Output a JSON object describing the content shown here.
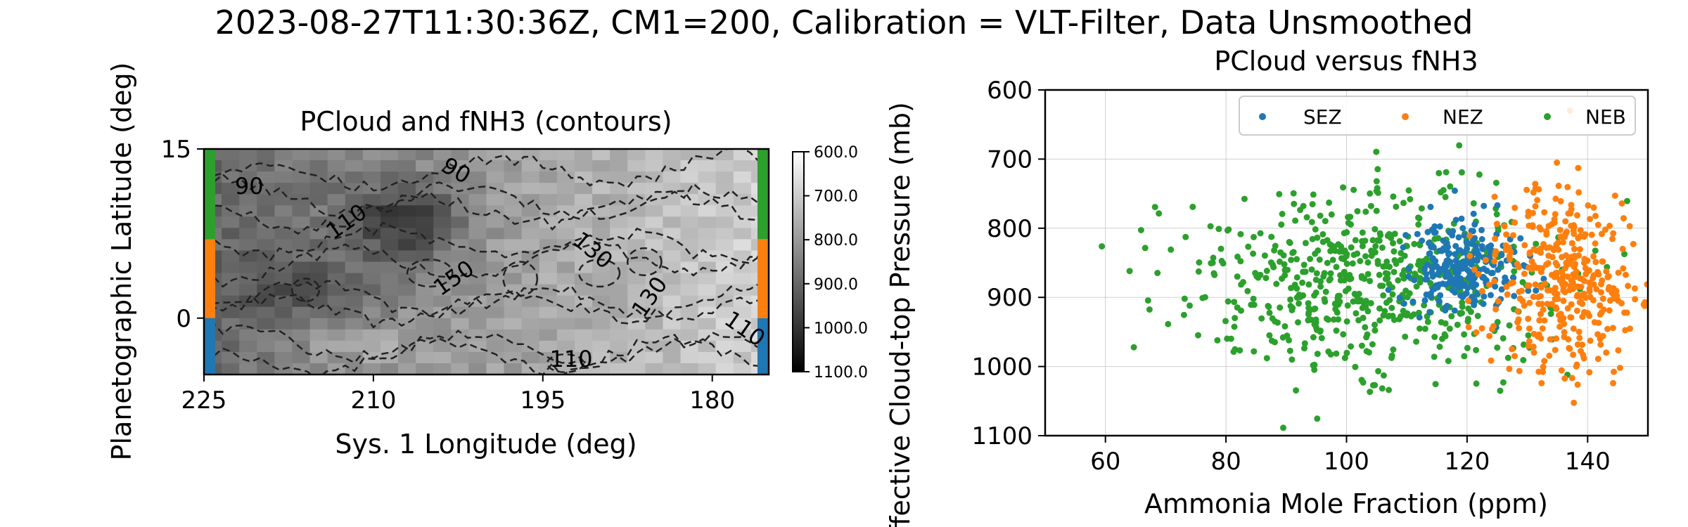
{
  "suptitle": "2023-08-27T11:30:36Z, CM1=200, Calibration = VLT-Filter, Data Unsmoothed",
  "colors": {
    "SEZ": "#1f77b4",
    "NEZ": "#ff7f0e",
    "NEB": "#2ca02c",
    "contour": "#222222",
    "grid": "#b0b0b0"
  },
  "chart_data": [
    {
      "type": "heatmap",
      "title": "PCloud and fNH3 (contours)",
      "xlabel": "Sys. 1 Longitude (deg)",
      "ylabel": "Planetographic Latitude (deg)",
      "xlim": [
        225,
        175
      ],
      "ylim": [
        -5,
        15
      ],
      "xticks": [
        "225",
        "210",
        "195",
        "180"
      ],
      "xtick_values": [
        225,
        210,
        195,
        180
      ],
      "yticks": [
        "15",
        "0"
      ],
      "ytick_values": [
        15,
        0
      ],
      "colorbar": {
        "ticks": [
          "600.0",
          "700.0",
          "800.0",
          "900.0",
          "1000.0",
          "1100.0"
        ],
        "tick_values": [
          600,
          700,
          800,
          900,
          1000,
          1100
        ],
        "range": [
          600,
          1100
        ]
      },
      "band_strips": [
        {
          "band": "NEB",
          "lat_range": [
            7,
            15
          ]
        },
        {
          "band": "NEZ",
          "lat_range": [
            0,
            7
          ]
        },
        {
          "band": "SEZ",
          "lat_range": [
            -5,
            0
          ]
        }
      ],
      "contour_labels": [
        {
          "text": "90",
          "lon": 221,
          "lat": 11
        },
        {
          "text": "110",
          "lon": 212,
          "lat": 8
        },
        {
          "text": "90",
          "lon": 203,
          "lat": 12.5
        },
        {
          "text": "130",
          "lon": 191,
          "lat": 5.5
        },
        {
          "text": "150",
          "lon": 202.5,
          "lat": 3
        },
        {
          "text": "130",
          "lon": 185,
          "lat": 1.5
        },
        {
          "text": "110",
          "lon": 177.5,
          "lat": -1.5
        },
        {
          "text": "110",
          "lon": 192.5,
          "lat": -4.3
        }
      ]
    },
    {
      "type": "scatter",
      "title": "PCloud versus fNH3",
      "xlabel": "Ammonia Mole Fraction (ppm)",
      "ylabel": "Effective Cloud-top Pressure (mb)",
      "xlim": [
        50,
        150
      ],
      "ylim": [
        1100,
        600
      ],
      "xticks": [
        "60",
        "80",
        "100",
        "120",
        "140"
      ],
      "xtick_values": [
        60,
        80,
        100,
        120,
        140
      ],
      "yticks": [
        "600",
        "700",
        "800",
        "900",
        "1000",
        "1100"
      ],
      "ytick_values": [
        600,
        700,
        800,
        900,
        1000,
        1100
      ],
      "grid": true,
      "legend_position": "top-right",
      "series": [
        {
          "name": "SEZ",
          "x_center": 119,
          "x_sd": 5,
          "y_center": 860,
          "y_sd": 33,
          "n": 240
        },
        {
          "name": "NEZ",
          "x_center": 136,
          "x_sd": 6.5,
          "y_center": 880,
          "y_sd": 65,
          "n": 380
        },
        {
          "name": "NEB",
          "x_center": 104,
          "x_sd": 15,
          "y_center": 880,
          "y_sd": 70,
          "n": 600
        }
      ]
    }
  ]
}
